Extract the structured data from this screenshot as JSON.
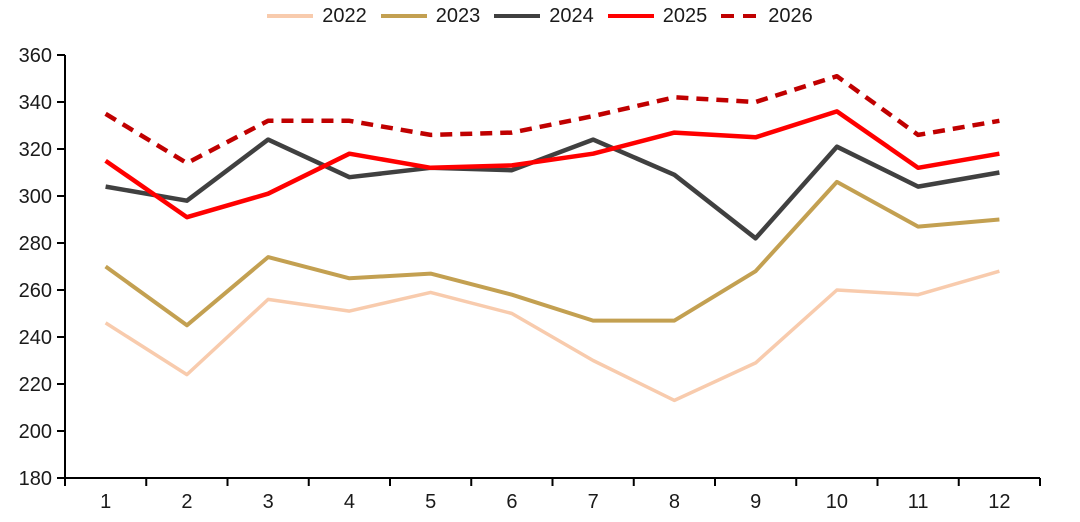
{
  "chart_data": {
    "type": "line",
    "title": "",
    "xlabel": "",
    "ylabel": "",
    "x": [
      1,
      2,
      3,
      4,
      5,
      6,
      7,
      8,
      9,
      10,
      11,
      12
    ],
    "ylim": [
      180,
      360
    ],
    "yticks": [
      180,
      200,
      220,
      240,
      260,
      280,
      300,
      320,
      340,
      360
    ],
    "grid": false,
    "legend_position": "top-center",
    "series": [
      {
        "name": "2022",
        "color": "#F8CBAD",
        "line_style": "solid",
        "values": [
          246,
          224,
          256,
          251,
          259,
          250,
          230,
          213,
          229,
          260,
          258,
          268
        ]
      },
      {
        "name": "2023",
        "color": "#C3A051",
        "line_style": "solid",
        "values": [
          270,
          245,
          274,
          265,
          267,
          258,
          247,
          247,
          268,
          306,
          287,
          290
        ]
      },
      {
        "name": "2024",
        "color": "#404040",
        "line_style": "solid",
        "values": [
          304,
          298,
          324,
          308,
          312,
          311,
          324,
          309,
          282,
          321,
          304,
          310
        ]
      },
      {
        "name": "2025",
        "color": "#FF0000",
        "line_style": "solid",
        "values": [
          315,
          291,
          301,
          318,
          312,
          313,
          318,
          327,
          325,
          336,
          312,
          318
        ]
      },
      {
        "name": "2026",
        "color": "#C00000",
        "line_style": "dashed",
        "values": [
          335,
          314,
          332,
          332,
          326,
          327,
          334,
          342,
          340,
          351,
          326,
          332
        ]
      }
    ]
  }
}
